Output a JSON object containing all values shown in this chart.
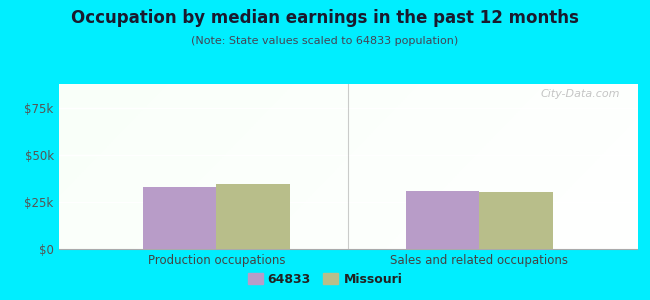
{
  "title": "Occupation by median earnings in the past 12 months",
  "subtitle": "(Note: State values scaled to 64833 population)",
  "categories": [
    "Production occupations",
    "Sales and related occupations"
  ],
  "values_64833": [
    33000,
    31000
  ],
  "values_missouri": [
    34500,
    30000
  ],
  "ylim": [
    0,
    87500
  ],
  "yticks": [
    0,
    25000,
    50000,
    75000
  ],
  "ytick_labels": [
    "$0",
    "$25k",
    "$50k",
    "$75k"
  ],
  "color_64833": "#b89cc8",
  "color_missouri": "#b8be8a",
  "background_outer": "#00eeff",
  "bar_width": 0.28,
  "legend_label_64833": "64833",
  "legend_label_missouri": "Missouri",
  "watermark": "City-Data.com"
}
